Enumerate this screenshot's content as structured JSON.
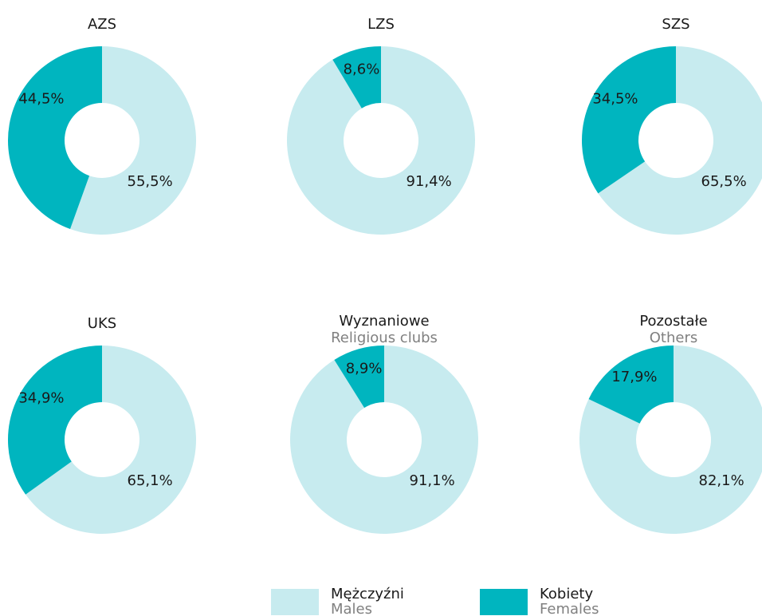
{
  "chart_data": [
    {
      "type": "donut",
      "title": "AZS",
      "values": [
        55.5,
        44.5
      ],
      "value_labels": [
        "55,5%",
        "44,5%"
      ]
    },
    {
      "type": "donut",
      "title": "LZS",
      "values": [
        91.4,
        8.6
      ],
      "value_labels": [
        "91,4%",
        "8,6%"
      ]
    },
    {
      "type": "donut",
      "title": "SZS",
      "values": [
        65.5,
        34.5
      ],
      "value_labels": [
        "65,5%",
        "34,5%"
      ]
    },
    {
      "type": "donut",
      "title": "UKS",
      "values": [
        65.1,
        34.9
      ],
      "value_labels": [
        "65,1%",
        "34,9%"
      ]
    },
    {
      "type": "donut",
      "title": "Wyznaniowe",
      "subtitle": "Religious clubs",
      "values": [
        91.1,
        8.9
      ],
      "value_labels": [
        "91,1%",
        "8,9%"
      ]
    },
    {
      "type": "donut",
      "title": "Pozostałe",
      "subtitle": "Others",
      "values": [
        82.1,
        17.9
      ],
      "value_labels": [
        "82,1%",
        "17,9%"
      ]
    }
  ],
  "legend": [
    {
      "name": "Mężczyźni",
      "subtitle": "Males",
      "color": "#c7ebef"
    },
    {
      "name": "Kobiety",
      "subtitle": "Females",
      "color": "#00b5bf"
    }
  ]
}
